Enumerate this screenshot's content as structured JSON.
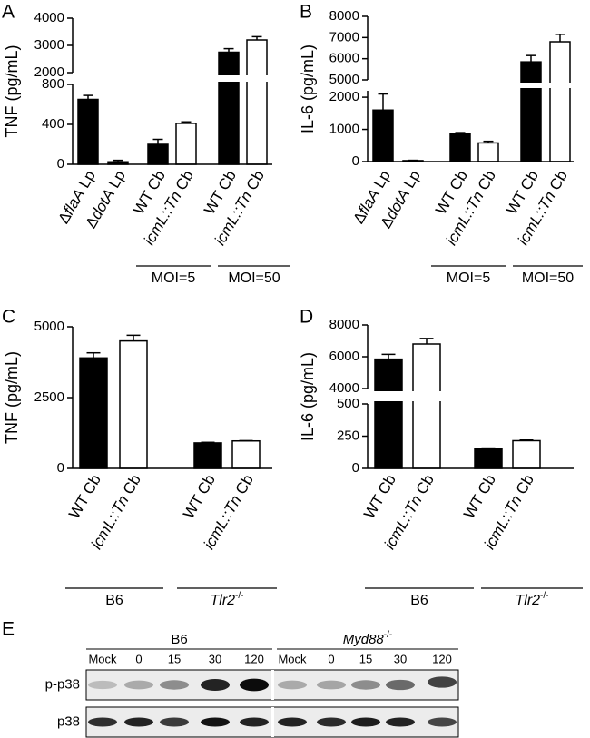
{
  "chart_data": [
    {
      "type": "bar",
      "label": "A",
      "ylabel": "TNF (pg/mL)",
      "categories": [
        [
          {
            "text": "Δ"
          },
          {
            "text": "flaA",
            "style": "italic"
          },
          {
            "text": " Lp"
          }
        ],
        [
          {
            "text": "Δ"
          },
          {
            "text": "dotA",
            "style": "italic"
          },
          {
            "text": " Lp"
          }
        ],
        [
          {
            "text": "WT Cb"
          }
        ],
        [
          {
            "text": "icmL::Tn",
            "style": "italic"
          },
          {
            "text": " Cb"
          }
        ],
        [
          {
            "text": "WT Cb"
          }
        ],
        [
          {
            "text": "icmL::Tn",
            "style": "italic"
          },
          {
            "text": " Cb"
          }
        ]
      ],
      "values": [
        650,
        25,
        200,
        410,
        2750,
        3200
      ],
      "errors": [
        40,
        15,
        50,
        15,
        130,
        120
      ],
      "colors": [
        "#000000",
        "#000000",
        "#000000",
        "#ffffff",
        "#000000",
        "#ffffff"
      ],
      "y_segments": [
        {
          "ylim": [
            0,
            800
          ],
          "yticks": [
            0,
            400,
            800
          ]
        },
        {
          "ylim": [
            2000,
            4000
          ],
          "yticks": [
            2000,
            3000,
            4000
          ]
        }
      ],
      "groups": [
        {
          "label": [
            {
              "text": "MOI=5"
            }
          ]
        },
        {
          "label": [
            {
              "text": "MOI=50"
            }
          ]
        }
      ]
    },
    {
      "type": "bar",
      "label": "B",
      "ylabel": "IL-6 (pg/mL)",
      "categories": [
        [
          {
            "text": "Δ"
          },
          {
            "text": "flaA",
            "style": "italic"
          },
          {
            "text": " Lp"
          }
        ],
        [
          {
            "text": "Δ"
          },
          {
            "text": "dotA",
            "style": "italic"
          },
          {
            "text": " Lp"
          }
        ],
        [
          {
            "text": "WT Cb"
          }
        ],
        [
          {
            "text": "icmL::Tn",
            "style": "italic"
          },
          {
            "text": " Cb"
          }
        ],
        [
          {
            "text": "WT Cb"
          }
        ],
        [
          {
            "text": "icmL::Tn",
            "style": "italic"
          },
          {
            "text": " Cb"
          }
        ]
      ],
      "values": [
        1600,
        30,
        870,
        580,
        5850,
        6800
      ],
      "errors": [
        500,
        10,
        30,
        50,
        300,
        350
      ],
      "colors": [
        "#000000",
        "#000000",
        "#000000",
        "#ffffff",
        "#000000",
        "#ffffff"
      ],
      "y_segments": [
        {
          "ylim": [
            0,
            2200
          ],
          "yticks": [
            0,
            1000,
            2000
          ]
        },
        {
          "ylim": [
            5000,
            8000
          ],
          "yticks": [
            5000,
            6000,
            7000,
            8000
          ]
        }
      ],
      "groups": [
        {
          "label": [
            {
              "text": "MOI=5"
            }
          ]
        },
        {
          "label": [
            {
              "text": "MOI=50"
            }
          ]
        }
      ]
    },
    {
      "type": "bar",
      "label": "C",
      "ylabel": "TNF (pg/mL)",
      "categories": [
        [
          {
            "text": "WT Cb"
          }
        ],
        [
          {
            "text": "icmL::Tn",
            "style": "italic"
          },
          {
            "text": " Cb"
          }
        ],
        [
          {
            "text": "WT Cb"
          }
        ],
        [
          {
            "text": "icmL::Tn",
            "style": "italic"
          },
          {
            "text": " Cb"
          }
        ]
      ],
      "values": [
        3900,
        4500,
        900,
        970
      ],
      "errors": [
        180,
        200,
        20,
        10
      ],
      "colors": [
        "#000000",
        "#ffffff",
        "#000000",
        "#ffffff"
      ],
      "y_segments": [
        {
          "ylim": [
            0,
            5000
          ],
          "yticks": [
            0,
            2500,
            5000
          ]
        }
      ],
      "groups": [
        {
          "label": [
            {
              "text": "B6"
            }
          ]
        },
        {
          "label": [
            {
              "text": "Tlr2",
              "style": "italic"
            },
            {
              "text": "-/-",
              "style": "sup"
            }
          ]
        }
      ]
    },
    {
      "type": "bar",
      "label": "D",
      "ylabel": "IL-6 (pg/mL)",
      "categories": [
        [
          {
            "text": "WT Cb"
          }
        ],
        [
          {
            "text": "icmL::Tn",
            "style": "italic"
          },
          {
            "text": " Cb"
          }
        ],
        [
          {
            "text": "WT Cb"
          }
        ],
        [
          {
            "text": "icmL::Tn",
            "style": "italic"
          },
          {
            "text": " Cb"
          }
        ]
      ],
      "values": [
        5850,
        6800,
        150,
        215
      ],
      "errors": [
        300,
        350,
        8,
        5
      ],
      "colors": [
        "#000000",
        "#ffffff",
        "#000000",
        "#ffffff"
      ],
      "y_segments": [
        {
          "ylim": [
            0,
            500
          ],
          "yticks": [
            0,
            250,
            500
          ]
        },
        {
          "ylim": [
            4000,
            8000
          ],
          "yticks": [
            4000,
            6000,
            8000
          ]
        }
      ],
      "groups": [
        {
          "label": [
            {
              "text": "B6"
            }
          ]
        },
        {
          "label": [
            {
              "text": "Tlr2",
              "style": "italic"
            },
            {
              "text": "-/-",
              "style": "sup"
            }
          ]
        }
      ]
    }
  ],
  "blot": {
    "label": "E",
    "groups": [
      {
        "label": [
          {
            "text": "B6"
          }
        ]
      },
      {
        "label": [
          {
            "text": "Myd88",
            "style": "italic"
          },
          {
            "text": "-/-",
            "style": "sup"
          }
        ]
      }
    ],
    "lanes": [
      "Mock",
      "0",
      "15",
      "30",
      "120",
      "Mock",
      "0",
      "15",
      "30",
      "120"
    ],
    "rows": [
      "p-p38",
      "p38"
    ]
  }
}
